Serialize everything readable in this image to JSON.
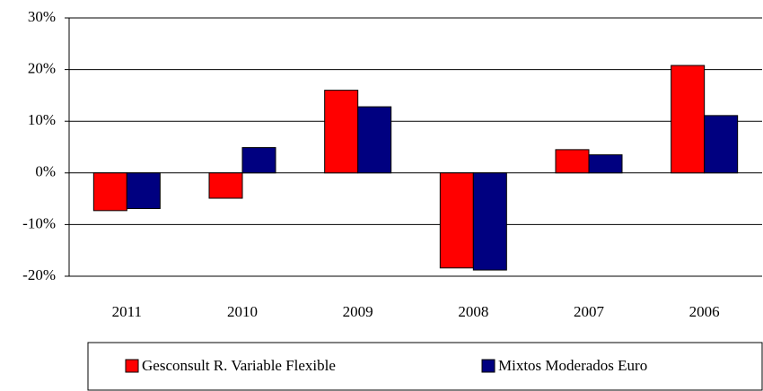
{
  "chart_data": {
    "type": "bar",
    "categories": [
      "2011",
      "2010",
      "2009",
      "2008",
      "2007",
      "2006"
    ],
    "series": [
      {
        "name": "Gesconsult R. Variable Flexible",
        "color": "#ff0000",
        "values": [
          -7.3,
          -4.9,
          16.0,
          -18.4,
          4.5,
          20.8
        ]
      },
      {
        "name": "Mixtos Moderados Euro",
        "color": "#000080",
        "values": [
          -6.9,
          4.9,
          12.8,
          -18.8,
          3.5,
          11.1
        ]
      }
    ],
    "ylim": [
      -20,
      30
    ],
    "yticks": [
      {
        "value": -20,
        "label": "-20%"
      },
      {
        "value": -10,
        "label": "-10%"
      },
      {
        "value": 0,
        "label": "0%"
      },
      {
        "value": 10,
        "label": "10%"
      },
      {
        "value": 20,
        "label": "20%"
      },
      {
        "value": 30,
        "label": "30%"
      }
    ],
    "grid": true
  }
}
